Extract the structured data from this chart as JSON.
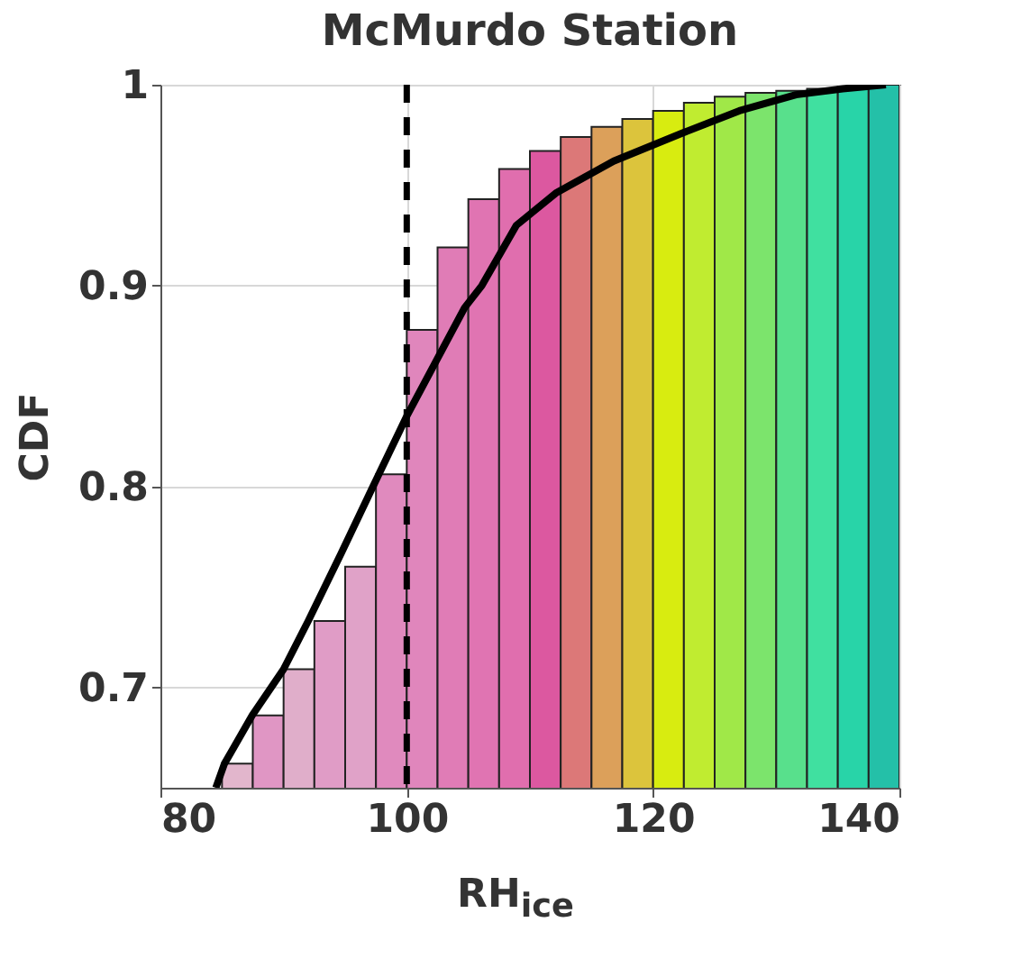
{
  "chart_data": {
    "type": "histogram",
    "title": "McMurdo Station",
    "xlabel": "RH$_{ice}$",
    "ylabel": "CDF",
    "bins": [
      85,
      87.5,
      90,
      92.5,
      95,
      97.5,
      100,
      102.5,
      105,
      107.5,
      110,
      112.5,
      115,
      117.5,
      120,
      122.5,
      125,
      127.5,
      130,
      132.5,
      135,
      137.5,
      140
    ],
    "values": [
      0.662,
      0.686,
      0.709,
      0.733,
      0.76,
      0.806,
      0.878,
      0.919,
      0.943,
      0.958,
      0.967,
      0.974,
      0.979,
      0.983,
      0.987,
      0.991,
      0.994,
      0.996,
      0.997,
      0.998,
      0.999,
      1.0
    ],
    "colors": [
      "#e2b6cc",
      "#e096c4",
      "#e0aeca",
      "#e09cc6",
      "#e0a2c8",
      "#e08abe",
      "#e086bc",
      "#e07cb6",
      "#e074b2",
      "#e06eae",
      "#dc58a0",
      "#dc7878",
      "#dca05a",
      "#dcc43c",
      "#d8ec10",
      "#c0ec30",
      "#a0e848",
      "#7ce46c",
      "#58e08c",
      "#40e0a0",
      "#28d4a8",
      "#24c0a8"
    ],
    "series": [
      {
        "type": "line",
        "color": "#000000",
        "x": [
          84.5,
          85.2,
          87.45,
          90.0,
          92.0,
          94.7,
          97.26,
          100,
          104.7,
          106.1,
          108.9,
          112.1,
          116.8,
          122.4,
          127.0,
          131.6,
          135.4,
          138.9
        ],
        "values": [
          0.65,
          0.662,
          0.686,
          0.709,
          0.733,
          0.767,
          0.8,
          0.835,
          0.889,
          0.9,
          0.93,
          0.946,
          0.962,
          0.976,
          0.987,
          0.995,
          0.998,
          1.0
        ]
      }
    ],
    "ref_lines": [
      {
        "axis": "x",
        "value": 100,
        "color": "#000000",
        "line_style": "dashed"
      }
    ],
    "xlim": [
      80,
      140
    ],
    "xticks": [
      80,
      100,
      120,
      140
    ],
    "ylim": [
      0.65,
      1
    ],
    "yticks": [
      0.7,
      0.8,
      0.9,
      1
    ],
    "grid": true
  }
}
